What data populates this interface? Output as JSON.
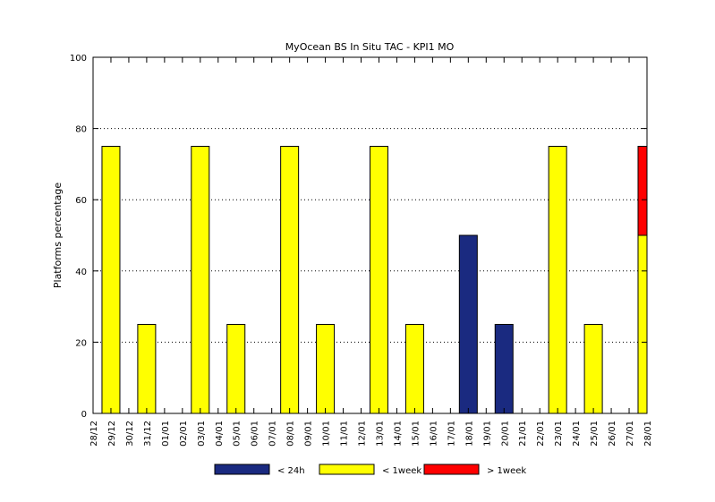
{
  "chart_data": {
    "type": "bar",
    "stacked": true,
    "title": "MyOcean  BS In Situ TAC - KPI1  MO",
    "xlabel": "",
    "ylabel": "Platforms percentage",
    "ylim": [
      0,
      100
    ],
    "yticks": [
      0,
      20,
      40,
      60,
      80,
      100
    ],
    "grid": "horizontal-dotted",
    "legend_position": "bottom",
    "categories": [
      "28/12",
      "29/12",
      "30/12",
      "31/12",
      "01/01",
      "02/01",
      "03/01",
      "04/01",
      "05/01",
      "06/01",
      "07/01",
      "08/01",
      "09/01",
      "10/01",
      "11/01",
      "12/01",
      "13/01",
      "14/01",
      "15/01",
      "16/01",
      "17/01",
      "18/01",
      "19/01",
      "20/01",
      "21/01",
      "22/01",
      "23/01",
      "24/01",
      "25/01",
      "26/01",
      "27/01",
      "28/01"
    ],
    "series": [
      {
        "name": "< 24h",
        "color": "#1a2a80",
        "values": [
          0,
          0,
          0,
          0,
          0,
          0,
          0,
          0,
          0,
          0,
          0,
          0,
          0,
          0,
          0,
          0,
          0,
          0,
          0,
          0,
          0,
          50,
          0,
          25,
          0,
          0,
          0,
          0,
          0,
          0,
          0,
          0
        ]
      },
      {
        "name": "< 1week",
        "color": "#ffff00",
        "values": [
          0,
          75,
          0,
          25,
          0,
          0,
          75,
          0,
          25,
          0,
          0,
          75,
          0,
          25,
          0,
          0,
          75,
          0,
          25,
          0,
          0,
          0,
          0,
          0,
          0,
          0,
          75,
          0,
          25,
          0,
          0,
          50
        ]
      },
      {
        "name": "> 1week",
        "color": "#ff0000",
        "values": [
          0,
          0,
          0,
          0,
          0,
          0,
          0,
          0,
          0,
          0,
          0,
          0,
          0,
          0,
          0,
          0,
          0,
          0,
          0,
          0,
          0,
          0,
          0,
          0,
          0,
          0,
          0,
          0,
          0,
          0,
          0,
          25
        ]
      }
    ]
  }
}
